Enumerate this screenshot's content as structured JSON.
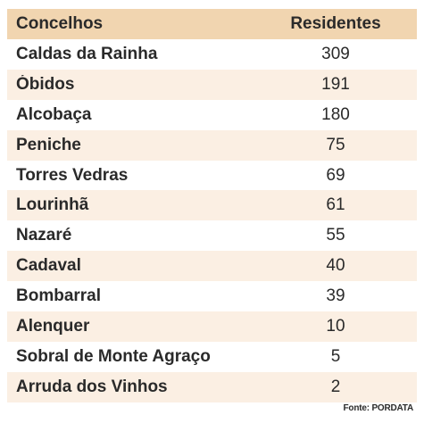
{
  "table": {
    "headers": {
      "municipality": "Concelhos",
      "residents": "Residentes"
    },
    "rows": [
      {
        "municipality": "Caldas da Rainha",
        "residents": "309"
      },
      {
        "municipality": "Óbidos",
        "residents": "191"
      },
      {
        "municipality": "Alcobaça",
        "residents": "180"
      },
      {
        "municipality": "Peniche",
        "residents": "75"
      },
      {
        "municipality": "Torres Vedras",
        "residents": "69"
      },
      {
        "municipality": "Lourinhã",
        "residents": "61"
      },
      {
        "municipality": "Nazaré",
        "residents": "55"
      },
      {
        "municipality": "Cadaval",
        "residents": "40"
      },
      {
        "municipality": "Bombarral",
        "residents": "39"
      },
      {
        "municipality": "Alenquer",
        "residents": "10"
      },
      {
        "municipality": "Sobral de Monte Agraço",
        "residents": "5"
      },
      {
        "municipality": "Arruda dos Vinhos",
        "residents": "2"
      }
    ]
  },
  "source": "Fonte: PORDATA",
  "colors": {
    "header_bg": "#f1d5b0",
    "stripe_bg": "#fbefe3",
    "text": "#2a2a2a"
  }
}
